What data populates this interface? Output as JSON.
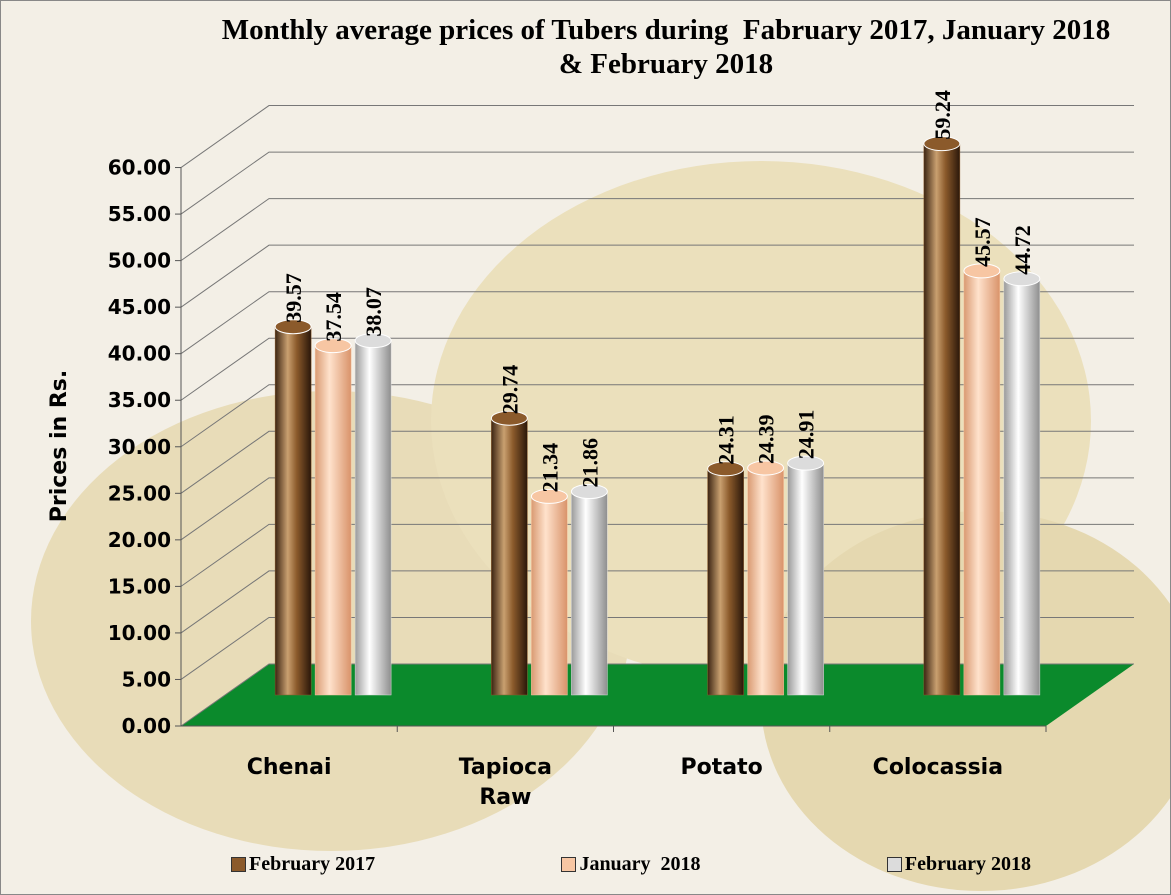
{
  "chart_data": {
    "type": "bar",
    "title": "Monthly average prices of Tubers during  Fabruary 2017, January 2018 & February 2018",
    "y_label": "Prices in Rs.",
    "categories": [
      "Chenai",
      "Tapioca Raw",
      "Potato",
      "Colocassia"
    ],
    "series": [
      {
        "name": "February 2017",
        "color": "#8b5a2b",
        "values": [
          39.57,
          29.74,
          24.31,
          59.24
        ]
      },
      {
        "name": "January  2018",
        "color": "#f7c6a3",
        "values": [
          37.54,
          21.34,
          24.39,
          45.57
        ]
      },
      {
        "name": "February 2018",
        "color": "#dcdcdc",
        "values": [
          38.07,
          21.86,
          24.91,
          44.72
        ]
      }
    ],
    "ylim": [
      0,
      65
    ],
    "yticks": [
      {
        "value": 0,
        "label": "0.00"
      },
      {
        "value": 5,
        "label": "5.00"
      },
      {
        "value": 10,
        "label": "10.00"
      },
      {
        "value": 15,
        "label": "15.00"
      },
      {
        "value": 20,
        "label": "20.00"
      },
      {
        "value": 25,
        "label": "25.00"
      },
      {
        "value": 30,
        "label": "30.00"
      },
      {
        "value": 35,
        "label": "35.00"
      },
      {
        "value": 40,
        "label": "40.00"
      },
      {
        "value": 45,
        "label": "45.00"
      },
      {
        "value": 50,
        "label": "50.00"
      },
      {
        "value": 55,
        "label": "55.00"
      },
      {
        "value": 60,
        "label": "60.00"
      }
    ],
    "grid": true,
    "floor_color": "#0b8a2c"
  }
}
